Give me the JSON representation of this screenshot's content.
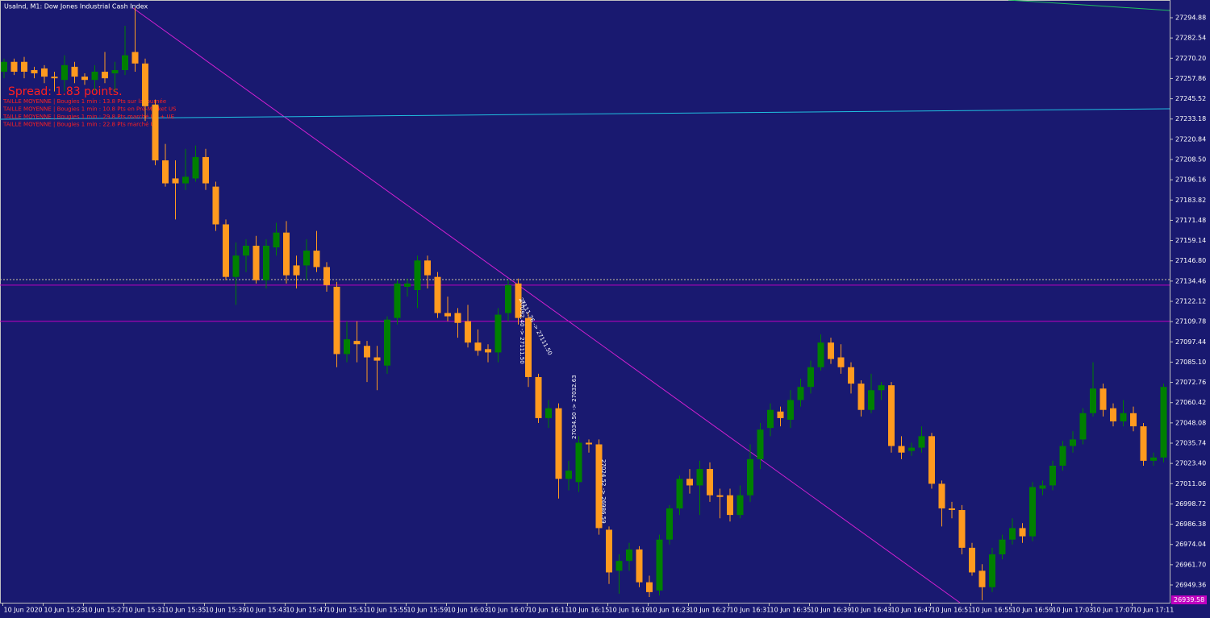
{
  "chart_data": {
    "type": "candlestick",
    "title": "UsaInd, M1:  Dow Jones Industrial Cash Index",
    "spread": "Spread: 1.83 points.",
    "notes": [
      "TAILLE MOYENNE | Bougies 1 min : 13.8 Pts sur la journée",
      "TAILLE MOYENNE | Bougies 1 min : 10.8 Pts en Pré-Market US",
      "TAILLE MOYENNE | Bougies 1 min : 29.8 Pts marché US + UE",
      "TAILLE MOYENNE | Bougies 1 min : 22.8 Pts marché US"
    ],
    "trade_labels": [
      "27111.76 -> 27111.50",
      "27092.40 -> 27111.50",
      "27034.50 -> 27032.63",
      "27024.52 -> 26986.59"
    ],
    "price_tag": "26939.58",
    "up_color": "#008000",
    "down_color": "#ff9a1f",
    "levels": [
      27132,
      27110
    ],
    "level_color": "#c000c0",
    "bid_level": 27135.4,
    "categories": [
      null,
      "10 Jun 2020",
      null,
      null,
      null,
      "10 Jun 15:23",
      null,
      null,
      null,
      "10 Jun 15:27",
      null,
      null,
      null,
      "10 Jun 15:31",
      null,
      null,
      null,
      "10 Jun 15:35",
      null,
      null,
      null,
      "10 Jun 15:39",
      null,
      null,
      null,
      "10 Jun 15:43",
      null,
      null,
      null,
      "10 Jun 15:47",
      null,
      null,
      null,
      "10 Jun 15:51",
      null,
      null,
      null,
      "10 Jun 15:55",
      null,
      null,
      null,
      "10 Jun 15:59",
      null,
      null,
      null,
      "10 Jun 16:03",
      null,
      null,
      null,
      "10 Jun 16:07",
      null,
      null,
      null,
      "10 Jun 16:11",
      null,
      null,
      null,
      "10 Jun 16:15",
      null,
      null,
      null,
      "10 Jun 16:19",
      null,
      null,
      null,
      "10 Jun 16:23",
      null,
      null,
      null,
      "10 Jun 16:27",
      null,
      null,
      null,
      "10 Jun 16:31",
      null,
      null,
      null,
      "10 Jun 16:35",
      null,
      null,
      null,
      "10 Jun 16:39",
      null,
      null,
      null,
      "10 Jun 16:43",
      null,
      null,
      null,
      "10 Jun 16:47",
      null,
      null,
      null,
      "10 Jun 16:51",
      null,
      null,
      null,
      "10 Jun 16:55",
      null,
      null,
      null,
      "10 Jun 16:59",
      null,
      null,
      null,
      "10 Jun 17:03",
      null,
      null,
      null,
      "10 Jun 17:07",
      null,
      null,
      null,
      "10 Jun 17:11",
      null,
      null
    ],
    "open": [
      27262,
      27268,
      27268,
      27263,
      27264,
      27259,
      27257,
      27265,
      27259,
      27257,
      27262,
      27261,
      27263,
      27274,
      27267,
      27242,
      27208,
      27197,
      27194,
      27197,
      27210,
      27192,
      27169,
      27137,
      27150,
      27156,
      27135,
      27155,
      27164,
      27144,
      27144,
      27153,
      27143,
      27131,
      27090,
      27098,
      27095,
      27088,
      27083,
      27112,
      27131,
      27129,
      27147,
      27137,
      27115,
      27115,
      27110,
      27097,
      27093,
      27091,
      27115,
      27133,
      27112,
      27076,
      27051,
      27057,
      27014,
      27012,
      27036,
      27035,
      26983,
      26958,
      26964,
      26971,
      26951,
      26946,
      26977,
      26996,
      27014,
      27010,
      27020,
      27004,
      27004,
      26992,
      27004,
      27026,
      27045,
      27055,
      27050,
      27062,
      27070,
      27082,
      27097,
      27088,
      27082,
      27072,
      27056,
      27068,
      27071,
      27034,
      27031,
      27033,
      27040,
      27011,
      26996,
      26995,
      26972,
      26958,
      26948,
      26968,
      26977,
      26984,
      26979,
      27008,
      27010,
      27022,
      27034,
      27038,
      27054,
      27069,
      27057,
      27049,
      27054,
      27046,
      27025,
      27027
    ],
    "high": [
      27270,
      27270,
      27271,
      27265,
      27266,
      27262,
      27272,
      27268,
      27261,
      27266,
      27274,
      27268,
      27290,
      27301,
      27270,
      27245,
      27218,
      27208,
      27215,
      27217,
      27215,
      27195,
      27172,
      27158,
      27160,
      27162,
      27160,
      27170,
      27171,
      27150,
      27160,
      27165,
      27146,
      27134,
      27110,
      27110,
      27098,
      27095,
      27113,
      27135,
      27136,
      27150,
      27150,
      27140,
      27125,
      27118,
      27120,
      27105,
      27096,
      27118,
      27135,
      27136,
      27115,
      27078,
      27062,
      27060,
      27025,
      27040,
      27038,
      27038,
      26985,
      26968,
      26975,
      26973,
      26955,
      26980,
      26998,
      27016,
      27020,
      27025,
      27024,
      27008,
      27008,
      27010,
      27035,
      27048,
      27060,
      27058,
      27068,
      27075,
      27086,
      27102,
      27100,
      27096,
      27085,
      27074,
      27078,
      27073,
      27073,
      27040,
      27036,
      27046,
      27042,
      27013,
      27000,
      26998,
      26975,
      26962,
      26972,
      26980,
      26990,
      26987,
      27012,
      27013,
      27025,
      27037,
      27043,
      27057,
      27085,
      27072,
      27060,
      27062,
      27058,
      27048,
      27030,
      27072
    ],
    "low": [
      27258,
      27260,
      27258,
      27258,
      27255,
      27250,
      27250,
      27255,
      27254,
      27250,
      27255,
      27250,
      27260,
      27262,
      27232,
      27205,
      27192,
      27172,
      27190,
      27195,
      27190,
      27165,
      27135,
      27120,
      27140,
      27133,
      27130,
      27150,
      27133,
      27130,
      27135,
      27140,
      27128,
      27082,
      27085,
      27085,
      27073,
      27068,
      27078,
      27108,
      27125,
      27118,
      27130,
      27112,
      27110,
      27100,
      27094,
      27089,
      27085,
      27085,
      27110,
      27108,
      27070,
      27048,
      27045,
      27002,
      27007,
      27006,
      27030,
      26980,
      26950,
      26944,
      26958,
      26948,
      26942,
      26943,
      26974,
      26992,
      27005,
      26992,
      27000,
      26990,
      26988,
      26990,
      27000,
      27020,
      27040,
      27046,
      27045,
      27058,
      27066,
      27080,
      27084,
      27078,
      27066,
      27052,
      27054,
      27062,
      27030,
      27026,
      27028,
      27030,
      27008,
      26985,
      26990,
      26968,
      26955,
      26940,
      26945,
      26965,
      26974,
      26975,
      26976,
      27004,
      27007,
      27019,
      27030,
      27035,
      27052,
      27052,
      27046,
      27046,
      27043,
      27022,
      27022,
      27024
    ],
    "close": [
      27268,
      27262,
      27262,
      27261,
      27259,
      27258,
      27266,
      27259,
      27257,
      27262,
      27258,
      27263,
      27272,
      27267,
      27241,
      27208,
      27194,
      27194,
      27198,
      27210,
      27194,
      27169,
      27137,
      27150,
      27156,
      27135,
      27156,
      27164,
      27138,
      27138,
      27153,
      27143,
      27132,
      27090,
      27099,
      27096,
      27088,
      27086,
      27111,
      27133,
      27133,
      27147,
      27138,
      27115,
      27113,
      27109,
      27097,
      27092,
      27091,
      27114,
      27132,
      27112,
      27076,
      27051,
      27057,
      27014,
      27019,
      27036,
      27035,
      26984,
      26957,
      26964,
      26971,
      26951,
      26945,
      26977,
      26996,
      27014,
      27010,
      27020,
      27004,
      27003,
      26992,
      27004,
      27026,
      27044,
      27056,
      27051,
      27062,
      27070,
      27082,
      27097,
      27087,
      27082,
      27072,
      27056,
      27068,
      27071,
      27034,
      27030,
      27033,
      27040,
      27011,
      26996,
      26995,
      26972,
      26957,
      26948,
      26968,
      26977,
      26984,
      26979,
      27009,
      27010,
      27022,
      27034,
      27038,
      27054,
      27069,
      27056,
      27049,
      27054,
      27046,
      27025,
      27027,
      27070
    ],
    "ylim": [
      26938.56,
      27305.68
    ],
    "yticks": [
      27294.88,
      27282.54,
      {
        "value": 27270.2,
        "label": "27270.20"
      },
      27257.86,
      27245.52,
      27233.18,
      27220.84,
      {
        "value": 27208.5,
        "label": "27208.50"
      },
      27196.16,
      27183.82,
      27171.48,
      27159.14,
      {
        "value": 27146.8,
        "label": "27146.80"
      },
      27134.46,
      27122.12,
      27109.78,
      27097.44,
      {
        "value": 27085.1,
        "label": "27085.10"
      },
      27072.76,
      27060.42,
      27048.08,
      27035.74,
      {
        "value": 27023.4,
        "label": "27023.40"
      },
      27011.06,
      26998.72,
      26986.38,
      26974.04,
      {
        "value": 26961.7,
        "label": "26961.70"
      },
      26949.36
    ]
  }
}
